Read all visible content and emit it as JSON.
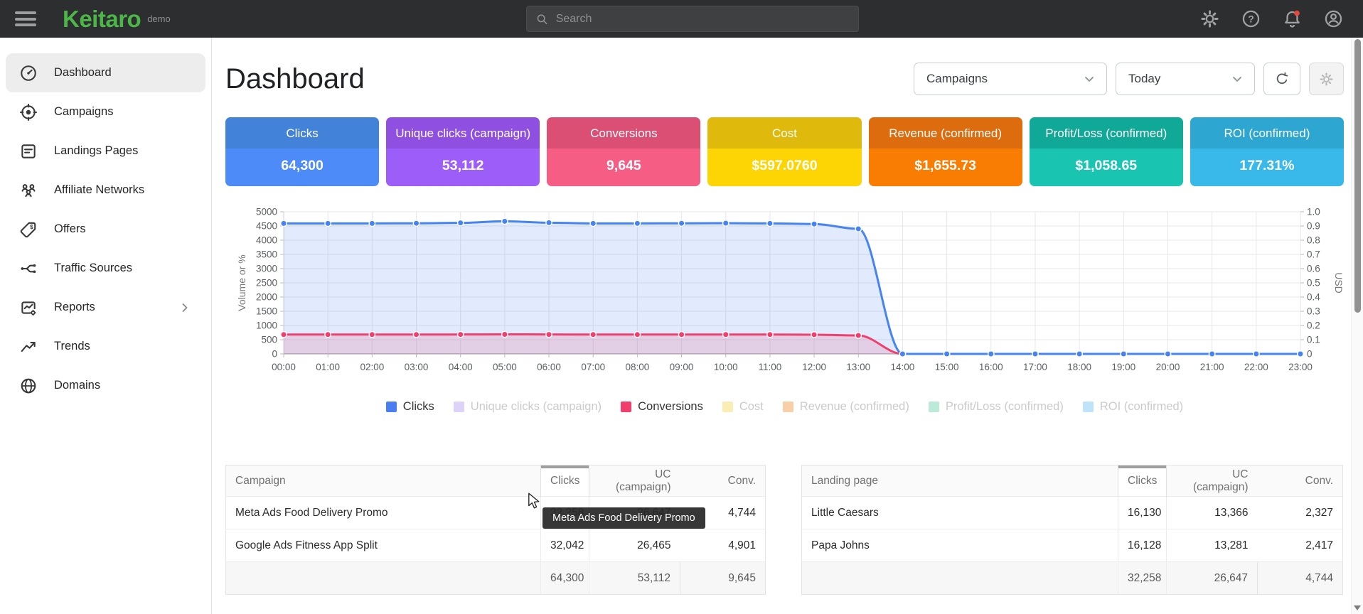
{
  "topbar": {
    "brand": "Keitaro",
    "brand_suffix": "demo",
    "search_placeholder": "Search",
    "icons": [
      "gear-icon",
      "help-icon",
      "bell-icon",
      "account-icon"
    ],
    "bell_has_notification": true,
    "notification_color": "#e5493d",
    "brand_color": "#4cb648"
  },
  "sidebar": {
    "items": [
      {
        "label": "Dashboard",
        "icon": "speedometer-icon",
        "active": true
      },
      {
        "label": "Campaigns",
        "icon": "target-icon",
        "active": false
      },
      {
        "label": "Landings Pages",
        "icon": "document-icon",
        "active": false
      },
      {
        "label": "Affiliate Networks",
        "icon": "people-icon",
        "active": false
      },
      {
        "label": "Offers",
        "icon": "tag-icon",
        "active": false
      },
      {
        "label": "Traffic Sources",
        "icon": "split-icon",
        "active": false
      },
      {
        "label": "Reports",
        "icon": "report-chart-icon",
        "active": false,
        "has_chevron": true
      },
      {
        "label": "Trends",
        "icon": "trending-up-icon",
        "active": false
      },
      {
        "label": "Domains",
        "icon": "globe-icon",
        "active": false
      }
    ]
  },
  "page": {
    "title": "Dashboard"
  },
  "controls": {
    "group_select_value": "Campaigns",
    "range_select_value": "Today"
  },
  "metric_cards": [
    {
      "label": "Clicks",
      "value": "64,300",
      "header_color": "#4282d8",
      "body_color": "#4d8bf8"
    },
    {
      "label": "Unique clicks (campaign)",
      "value": "53,112",
      "header_color": "#8f50e2",
      "body_color": "#9d5df8"
    },
    {
      "label": "Conversions",
      "value": "9,645",
      "header_color": "#db4f75",
      "body_color": "#f55d85"
    },
    {
      "label": "Cost",
      "value": "$597.0760",
      "header_color": "#dfba0c",
      "body_color": "#fdd404"
    },
    {
      "label": "Revenue (confirmed)",
      "value": "$1,655.73",
      "header_color": "#dd6c0f",
      "body_color": "#f87d02"
    },
    {
      "label": "Profit/Loss (confirmed)",
      "value": "$1,058.65",
      "header_color": "#10a896",
      "body_color": "#19c5b1"
    },
    {
      "label": "ROI (confirmed)",
      "value": "177.31%",
      "header_color": "#2da6d2",
      "body_color": "#38b9ea"
    }
  ],
  "chart_data": {
    "type": "line",
    "x": [
      "00:00",
      "01:00",
      "02:00",
      "03:00",
      "04:00",
      "05:00",
      "06:00",
      "07:00",
      "08:00",
      "09:00",
      "10:00",
      "11:00",
      "12:00",
      "13:00",
      "14:00",
      "15:00",
      "16:00",
      "17:00",
      "18:00",
      "19:00",
      "20:00",
      "21:00",
      "22:00",
      "23:00"
    ],
    "ylabel_left": "Volume or %",
    "ylabel_right": "USD",
    "ylim_left": [
      0,
      5000
    ],
    "ytick_step_left": 500,
    "ylim_right": [
      0,
      1.0
    ],
    "ytick_step_right": 0.1,
    "grid": true,
    "series": [
      {
        "name": "Clicks",
        "color": "#4584f2",
        "fill": "rgba(69,132,242,0.16)",
        "values": [
          4590,
          4590,
          4590,
          4595,
          4610,
          4665,
          4615,
          4590,
          4590,
          4595,
          4600,
          4590,
          4570,
          4400,
          0,
          0,
          0,
          0,
          0,
          0,
          0,
          0,
          0,
          0
        ]
      },
      {
        "name": "Conversions",
        "color": "#f23e6c",
        "fill": "rgba(242,62,108,0.16)",
        "values": [
          680,
          680,
          680,
          680,
          683,
          688,
          684,
          680,
          680,
          680,
          682,
          680,
          676,
          650,
          0,
          0,
          0,
          0,
          0,
          0,
          0,
          0,
          0,
          0
        ]
      }
    ]
  },
  "legend": [
    {
      "label": "Clicks",
      "swatch": "#4a7cf2",
      "active": true
    },
    {
      "label": "Unique clicks (campaign)",
      "swatch": "#ddd2f7",
      "active": false
    },
    {
      "label": "Conversions",
      "swatch": "#f23e6c",
      "active": true
    },
    {
      "label": "Cost",
      "swatch": "#f9edb3",
      "active": false
    },
    {
      "label": "Revenue (confirmed)",
      "swatch": "#f8d0a8",
      "active": false
    },
    {
      "label": "Profit/Loss (confirmed)",
      "swatch": "#bcead8",
      "active": false
    },
    {
      "label": "ROI (confirmed)",
      "swatch": "#bfe3f7",
      "active": false
    }
  ],
  "tables": {
    "campaigns": {
      "columns": [
        "Campaign",
        "Clicks",
        "UC (campaign)",
        "Conv."
      ],
      "sorted_column": "Clicks",
      "rows": [
        {
          "name": "Meta Ads Food Delivery Promo",
          "clicks": "32,258",
          "uc": "26,647",
          "conv": "4,744"
        },
        {
          "name": "Google Ads Fitness App Split",
          "clicks": "32,042",
          "uc": "26,465",
          "conv": "4,901"
        }
      ],
      "totals": {
        "clicks": "64,300",
        "uc": "53,112",
        "conv": "9,645"
      }
    },
    "landings": {
      "columns": [
        "Landing page",
        "Clicks",
        "UC (campaign)",
        "Conv."
      ],
      "sorted_column": "Clicks",
      "rows": [
        {
          "name": "Little Caesars",
          "clicks": "16,130",
          "uc": "13,366",
          "conv": "2,327"
        },
        {
          "name": "Papa Johns",
          "clicks": "16,128",
          "uc": "13,281",
          "conv": "2,417"
        }
      ],
      "totals": {
        "clicks": "32,258",
        "uc": "26,647",
        "conv": "4,744"
      }
    }
  },
  "tooltip": {
    "text": "Meta Ads Food Delivery Promo"
  }
}
